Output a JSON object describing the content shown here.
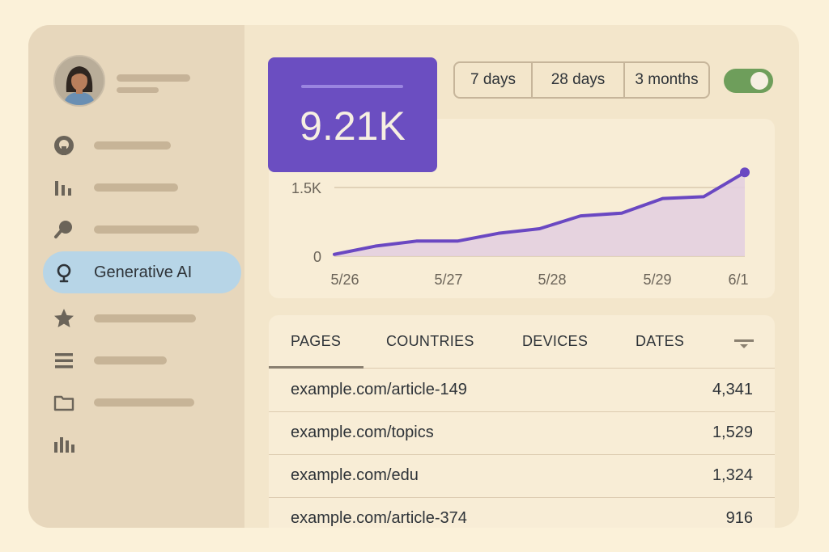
{
  "sidebar": {
    "avatar_icon": "user-avatar",
    "items": [
      {
        "icon": "github-icon"
      },
      {
        "icon": "bar-chart-icon"
      },
      {
        "icon": "search-icon"
      },
      {
        "icon": "lightbulb-icon",
        "label": "Generative AI",
        "active": true
      },
      {
        "icon": "star-icon"
      },
      {
        "icon": "list-icon"
      },
      {
        "icon": "folder-icon"
      },
      {
        "icon": "analytics-icon"
      }
    ]
  },
  "kpi": {
    "value": "9.21K"
  },
  "range": {
    "options": [
      "7 days",
      "28 days",
      "3 months"
    ]
  },
  "toggle": {
    "on": true
  },
  "chart_data": {
    "type": "area",
    "x_tick_labels": [
      "5/26",
      "5/27",
      "5/28",
      "5/29",
      "6/1"
    ],
    "y_tick_labels": [
      "1.5K",
      "0"
    ],
    "ylim": [
      0,
      1500
    ],
    "values": [
      40,
      220,
      330,
      330,
      500,
      600,
      880,
      940,
      1260,
      1300,
      1830
    ],
    "color": "#6a48c2",
    "fill": "#e3cfe0"
  },
  "table": {
    "tabs": [
      "PAGES",
      "COUNTRIES",
      "DEVICES",
      "DATES"
    ],
    "rows": [
      {
        "page": "example.com/article-149",
        "value": "4,341"
      },
      {
        "page": "example.com/topics",
        "value": "1,529"
      },
      {
        "page": "example.com/edu",
        "value": "1,324"
      },
      {
        "page": "example.com/article-374",
        "value": "916"
      }
    ]
  },
  "colors": {
    "accent": "#6b4ec1",
    "active_nav": "#b7d5e7",
    "toggle_on": "#6e9e5b"
  }
}
